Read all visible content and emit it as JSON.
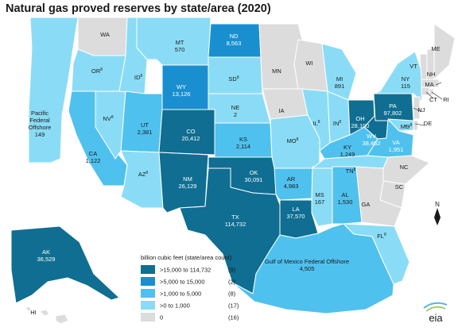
{
  "title": "Natural gas proved reserves by state/area (2020)",
  "colors": {
    "cat1": "#0f6e91",
    "cat2": "#1a8fd0",
    "cat3": "#4fc1ee",
    "cat4": "#8adcf6",
    "cat5": "#dcdcdc",
    "water": "#ffffff"
  },
  "legend": {
    "title": "billion cubic feet (state/area count)",
    "items": [
      {
        "range": ">15,000 to 114,732",
        "count": "(9)",
        "color": "#0f6e91"
      },
      {
        "range": ">5,000 to 15,000",
        "count": "(2)",
        "color": "#1a8fd0"
      },
      {
        "range": ">1,000 to 5,000",
        "count": "(8)",
        "color": "#4fc1ee"
      },
      {
        "range": ">0 to 1,000",
        "count": "(17)",
        "color": "#8adcf6"
      },
      {
        "range": "0",
        "count": "(16)",
        "color": "#dcdcdc"
      }
    ]
  },
  "compass": "N",
  "logo": "eia",
  "areas": [
    {
      "id": "WA",
      "name": "WA",
      "value": "",
      "cat": 5
    },
    {
      "id": "OR",
      "name": "OR",
      "value": "",
      "cat": 4,
      "footnote": "8"
    },
    {
      "id": "CA",
      "name": "CA",
      "value": "1,122",
      "cat": 3
    },
    {
      "id": "NV",
      "name": "NV",
      "value": "",
      "cat": 4,
      "footnote": "8"
    },
    {
      "id": "ID",
      "name": "ID",
      "value": "",
      "cat": 4,
      "footnote": "8"
    },
    {
      "id": "MT",
      "name": "MT",
      "value": "570",
      "cat": 4
    },
    {
      "id": "WY",
      "name": "WY",
      "value": "13,126",
      "cat": 2
    },
    {
      "id": "UT",
      "name": "UT",
      "value": "2,381",
      "cat": 3
    },
    {
      "id": "AZ",
      "name": "AZ",
      "value": "",
      "cat": 4,
      "footnote": "8"
    },
    {
      "id": "CO",
      "name": "CO",
      "value": "20,412",
      "cat": 1
    },
    {
      "id": "NM",
      "name": "NM",
      "value": "26,129",
      "cat": 1
    },
    {
      "id": "ND",
      "name": "ND",
      "value": "8,563",
      "cat": 2
    },
    {
      "id": "SD",
      "name": "SD",
      "value": "",
      "cat": 4,
      "footnote": "8"
    },
    {
      "id": "NE",
      "name": "NE",
      "value": "2",
      "cat": 4
    },
    {
      "id": "KS",
      "name": "KS",
      "value": "2,114",
      "cat": 3
    },
    {
      "id": "OK",
      "name": "OK",
      "value": "30,091",
      "cat": 1
    },
    {
      "id": "TX",
      "name": "TX",
      "value": "114,732",
      "cat": 1
    },
    {
      "id": "MN",
      "name": "MN",
      "value": "",
      "cat": 5
    },
    {
      "id": "IA",
      "name": "IA",
      "value": "",
      "cat": 5
    },
    {
      "id": "MO",
      "name": "MO",
      "value": "",
      "cat": 4,
      "footnote": "8"
    },
    {
      "id": "AR",
      "name": "AR",
      "value": "4,983",
      "cat": 3
    },
    {
      "id": "LA",
      "name": "LA",
      "value": "37,570",
      "cat": 1
    },
    {
      "id": "WI",
      "name": "WI",
      "value": "",
      "cat": 5
    },
    {
      "id": "IL",
      "name": "IL",
      "value": "",
      "cat": 4,
      "footnote": "8"
    },
    {
      "id": "MS",
      "name": "MS",
      "value": "167",
      "cat": 4
    },
    {
      "id": "MI",
      "name": "MI",
      "value": "891",
      "cat": 4
    },
    {
      "id": "IN",
      "name": "IN",
      "value": "",
      "cat": 4,
      "footnote": "8"
    },
    {
      "id": "KY",
      "name": "KY",
      "value": "1,249",
      "cat": 3
    },
    {
      "id": "TN",
      "name": "TN",
      "value": "",
      "cat": 4,
      "footnote": "8"
    },
    {
      "id": "AL",
      "name": "AL",
      "value": "1,530",
      "cat": 3
    },
    {
      "id": "OH",
      "name": "OH",
      "value": "28,100",
      "cat": 1
    },
    {
      "id": "WV",
      "name": "WV",
      "value": "38,462",
      "cat": 1
    },
    {
      "id": "VA",
      "name": "VA",
      "value": "1,951",
      "cat": 3
    },
    {
      "id": "PA",
      "name": "PA",
      "value": "97,802",
      "cat": 1
    },
    {
      "id": "NY",
      "name": "NY",
      "value": "115",
      "cat": 4
    },
    {
      "id": "MD",
      "name": "MD",
      "value": "",
      "cat": 4,
      "footnote": "8"
    },
    {
      "id": "DE",
      "name": "DE",
      "value": "",
      "cat": 5
    },
    {
      "id": "NJ",
      "name": "NJ",
      "value": "",
      "cat": 5
    },
    {
      "id": "CT",
      "name": "CT",
      "value": "",
      "cat": 5
    },
    {
      "id": "RI",
      "name": "RI",
      "value": "",
      "cat": 5
    },
    {
      "id": "MA",
      "name": "MA",
      "value": "",
      "cat": 5
    },
    {
      "id": "VT",
      "name": "VT",
      "value": "",
      "cat": 5
    },
    {
      "id": "NH",
      "name": "NH",
      "value": "",
      "cat": 5
    },
    {
      "id": "ME",
      "name": "ME",
      "value": "",
      "cat": 5
    },
    {
      "id": "NC",
      "name": "NC",
      "value": "",
      "cat": 5
    },
    {
      "id": "SC",
      "name": "SC",
      "value": "",
      "cat": 5
    },
    {
      "id": "GA",
      "name": "GA",
      "value": "",
      "cat": 5
    },
    {
      "id": "FL",
      "name": "FL",
      "value": "",
      "cat": 4,
      "footnote": "8"
    },
    {
      "id": "AK",
      "name": "AK",
      "value": "36,529",
      "cat": 1
    },
    {
      "id": "HI",
      "name": "HI",
      "value": "",
      "cat": 5
    },
    {
      "id": "PACIFIC",
      "name": "Pacific Federal Offshore",
      "value": "149",
      "cat": 4
    },
    {
      "id": "GOM",
      "name": "Gulf of Mexico Federal Offshore",
      "value": "4,505",
      "cat": 3
    }
  ]
}
